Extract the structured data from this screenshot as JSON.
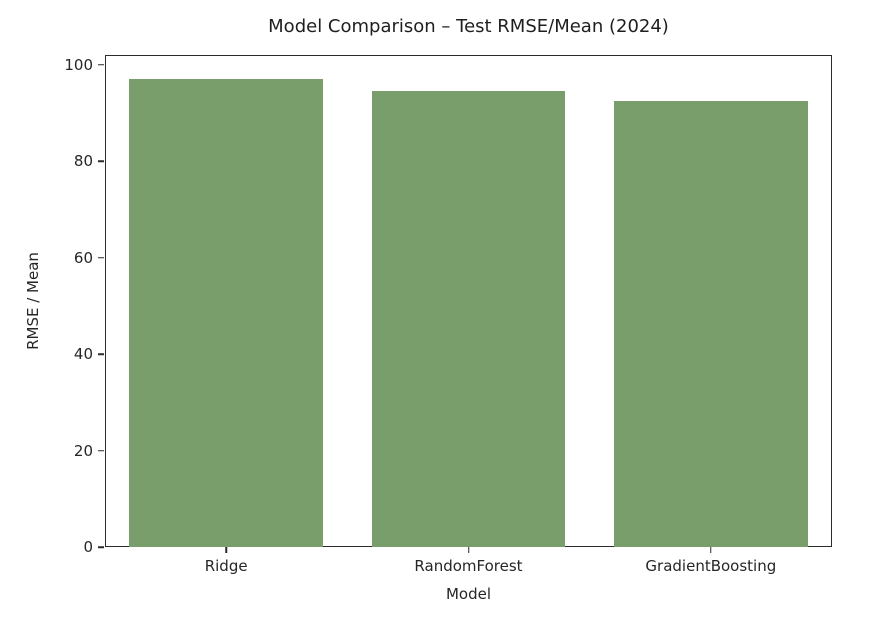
{
  "chart_data": {
    "type": "bar",
    "title": "Model Comparison – Test RMSE/Mean (2024)",
    "xlabel": "Model",
    "ylabel": "RMSE / Mean",
    "categories": [
      "Ridge",
      "RandomForest",
      "GradientBoosting"
    ],
    "values": [
      97.4,
      94.8,
      92.7
    ],
    "yticks": [
      0,
      20,
      40,
      60,
      80,
      100
    ],
    "ylim": [
      0,
      102
    ],
    "bar_width_fraction": 0.8,
    "bar_color": "#7a9e6b",
    "spine_color": "#2b2b2b",
    "text_color": "#262626",
    "background_color": "#ffffff",
    "grid": false,
    "legend": false
  }
}
